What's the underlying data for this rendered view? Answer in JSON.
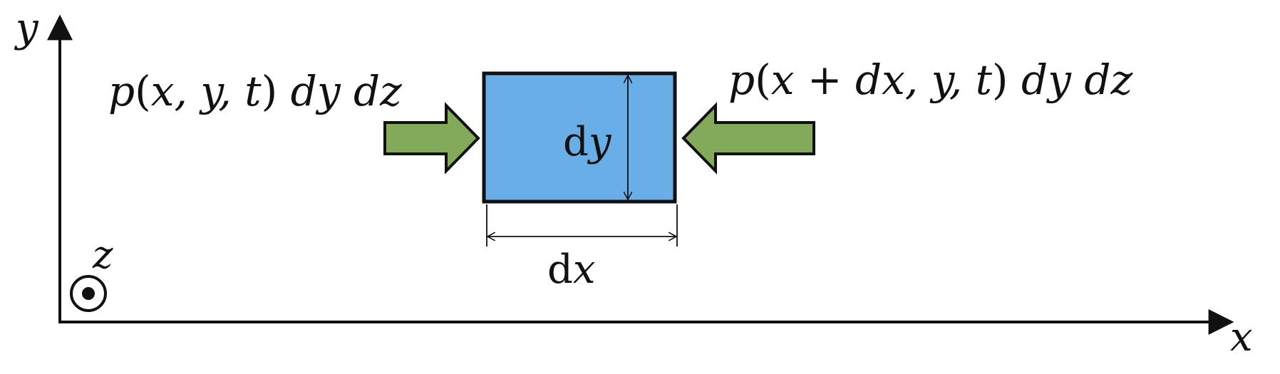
{
  "axes": {
    "x_label": "x",
    "y_label": "y",
    "z_label": "z"
  },
  "element": {
    "width_label": {
      "d": "d",
      "var": "x"
    },
    "height_label": {
      "d": "d",
      "var": "y"
    }
  },
  "forces": {
    "left": {
      "p": "p",
      "open": "(",
      "args": "x, y, t",
      "close": ")",
      "area": " dy dz"
    },
    "right": {
      "p": "p",
      "open": "(",
      "args": "x + dx, y, t",
      "close": ")",
      "area": " dy dz"
    }
  },
  "colors": {
    "element_fill": "#6aaee8",
    "arrow_fill": "#82aa5a",
    "stroke": "#111111"
  }
}
